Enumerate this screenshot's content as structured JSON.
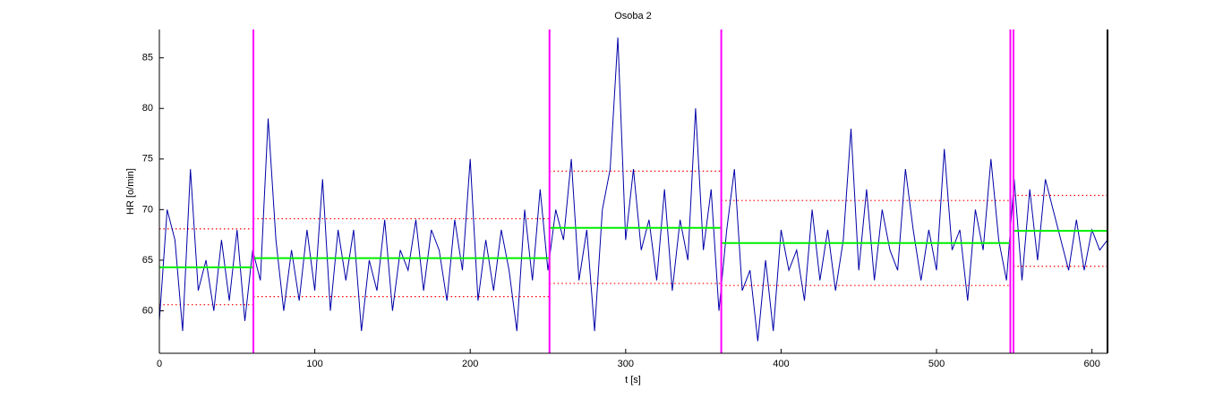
{
  "chart_data": {
    "type": "line",
    "title": "Osoba 2",
    "x_label": "t [s]",
    "y_label": "HR [o/min]",
    "xlim": [
      0,
      610
    ],
    "ylim": [
      55.8,
      87.8
    ],
    "xticks": [
      0,
      100,
      200,
      300,
      400,
      500,
      600
    ],
    "yticks": [
      60,
      65,
      70,
      75,
      80,
      85
    ],
    "color": "#0000a8",
    "boundary_color": "#ff00ff",
    "mean_color": "#00ee00",
    "band_color": "#ff0000",
    "x": [
      0,
      5,
      10,
      15,
      20,
      25,
      30,
      35,
      40,
      45,
      50,
      55,
      60,
      65,
      70,
      75,
      80,
      85,
      90,
      95,
      100,
      105,
      110,
      115,
      120,
      125,
      130,
      135,
      140,
      145,
      150,
      155,
      160,
      165,
      170,
      175,
      180,
      185,
      190,
      195,
      200,
      205,
      210,
      215,
      220,
      225,
      230,
      235,
      240,
      245,
      250,
      255,
      260,
      265,
      270,
      275,
      280,
      285,
      290,
      295,
      300,
      305,
      310,
      315,
      320,
      325,
      330,
      335,
      340,
      345,
      350,
      355,
      360,
      365,
      370,
      375,
      380,
      385,
      390,
      395,
      400,
      405,
      410,
      415,
      420,
      425,
      430,
      435,
      440,
      445,
      450,
      455,
      460,
      465,
      470,
      475,
      480,
      485,
      490,
      495,
      500,
      505,
      510,
      515,
      520,
      525,
      530,
      535,
      540,
      545,
      550,
      555,
      560,
      565,
      570,
      575,
      580,
      585,
      590,
      595,
      600,
      605,
      610
    ],
    "values": [
      59,
      70,
      67,
      58,
      74,
      62,
      65,
      60,
      67,
      61,
      68,
      59,
      66,
      63,
      79,
      67,
      60,
      66,
      61,
      68,
      62,
      73,
      60,
      68,
      63,
      68,
      58,
      65,
      62,
      69,
      60,
      66,
      64,
      69,
      62,
      68,
      66,
      61,
      69,
      64,
      75,
      61,
      67,
      62,
      68,
      64,
      58,
      70,
      63,
      72,
      64,
      70,
      67,
      75,
      63,
      68,
      58,
      70,
      74,
      87,
      67,
      74,
      66,
      69,
      63,
      72,
      62,
      69,
      65,
      80,
      66,
      72,
      60,
      68,
      74,
      62,
      64,
      57,
      65,
      58,
      68,
      64,
      66,
      61,
      70,
      63,
      68,
      62,
      67,
      78,
      64,
      72,
      63,
      70,
      66,
      64,
      74,
      68,
      63,
      68,
      64,
      76,
      66,
      68,
      61,
      70,
      66,
      75,
      67,
      63,
      73,
      63,
      72,
      65,
      73,
      70,
      67,
      64,
      69,
      64,
      68,
      66,
      67
    ],
    "boundaries": [
      60.5,
      251,
      361.5,
      547.5,
      549.5
    ],
    "segments": [
      {
        "start": 0,
        "end": 60.5,
        "mean": 64.3,
        "upper": 68.1,
        "lower": 60.6
      },
      {
        "start": 60.5,
        "end": 251,
        "mean": 65.2,
        "upper": 69.1,
        "lower": 61.4
      },
      {
        "start": 251,
        "end": 361.5,
        "mean": 68.2,
        "upper": 73.8,
        "lower": 62.7
      },
      {
        "start": 361.5,
        "end": 547.5,
        "mean": 66.7,
        "upper": 70.9,
        "lower": 62.5
      },
      {
        "start": 549.5,
        "end": 610,
        "mean": 67.9,
        "upper": 71.4,
        "lower": 64.4
      }
    ]
  }
}
